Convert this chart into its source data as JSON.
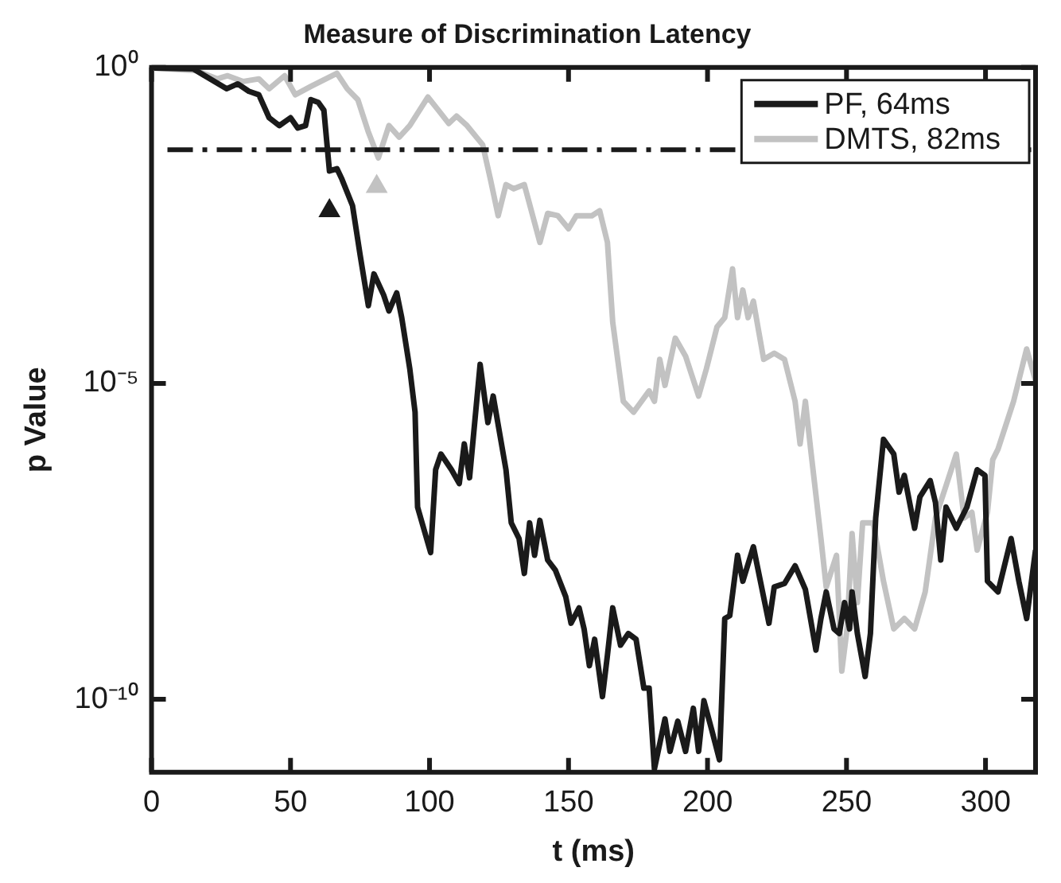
{
  "chart_data": {
    "type": "line",
    "title": "Measure of Discrimination Latency",
    "xlabel": "t (ms)",
    "ylabel": "p Value",
    "log": "y",
    "grid": false,
    "legend": "top right",
    "xlim": [
      0,
      318
    ],
    "xticks": [
      0,
      50,
      100,
      150,
      200,
      250,
      300
    ],
    "ylim": [
      7e-12,
      1
    ],
    "yticks": [
      {
        "value": 1,
        "label": "10⁰"
      },
      {
        "value": 1e-05,
        "label": "10⁻⁵"
      },
      {
        "value": 1e-10,
        "label": "10⁻¹⁰"
      }
    ],
    "ref_lines": [
      {
        "axis": "y",
        "value": 0.05,
        "color": "#1a1a1a",
        "line_style": "dashed"
      }
    ],
    "series": [
      {
        "name": "PF, 64ms",
        "type": "line",
        "color": "#1a1a1a",
        "x": [
          1,
          15,
          27,
          31,
          35,
          38.6,
          42.3,
          46,
          50,
          52.6,
          55.4,
          57.3,
          60,
          62,
          64,
          66.7,
          68.5,
          72.3,
          75,
          78,
          80,
          83.5,
          85.4,
          88.2,
          90,
          92.9,
          94.8,
          95.7,
          100.4,
          102.2,
          104.1,
          107.9,
          110.7,
          112.5,
          114.4,
          118.2,
          121,
          122.9,
          127.5,
          129.4,
          132.2,
          134.1,
          136,
          137.8,
          139.7,
          142.5,
          145.3,
          149,
          150.9,
          153.8,
          155.6,
          157.5,
          159.4,
          162.2,
          164,
          165.9,
          168.7,
          171.5,
          174.3,
          177.1,
          179,
          180.9,
          184.7,
          186.5,
          189.3,
          192.1,
          194.9,
          196.8,
          198.7,
          201.5,
          204.3,
          206.2,
          208,
          210.8,
          212.7,
          216.5,
          222.1,
          224,
          227.7,
          231.5,
          235.2,
          239,
          240.8,
          242.7,
          245.5,
          247.4,
          249.3,
          251.1,
          252,
          253.9,
          256.7,
          258.6,
          260.5,
          263.3,
          267,
          268.9,
          270.8,
          274.5,
          276.4,
          280.1,
          282,
          283.9,
          285.8,
          289.5,
          293.3,
          297,
          299.8,
          300.7,
          304.5,
          309.2,
          312,
          314.8,
          318
        ],
        "values": [
          0.98,
          0.95,
          0.46,
          0.55,
          0.42,
          0.37,
          0.16,
          0.12,
          0.16,
          0.11,
          0.12,
          0.31,
          0.28,
          0.21,
          0.023,
          0.025,
          0.017,
          0.0065,
          0.0011,
          0.00017,
          0.00054,
          0.00025,
          0.00014,
          0.00027,
          0.00011,
          1.7e-05,
          3.5e-06,
          1.1e-07,
          2.1e-08,
          4.3e-07,
          7.6e-07,
          4.3e-07,
          2.6e-07,
          1.1e-06,
          3.2e-07,
          2e-05,
          2.4e-06,
          6.3e-06,
          4.3e-07,
          6.2e-08,
          3.5e-08,
          9.8e-09,
          6.2e-08,
          1.9e-08,
          6.8e-08,
          1.6e-08,
          1.1e-08,
          4.2e-09,
          1.6e-09,
          2.8e-09,
          1.3e-09,
          3.4e-10,
          8.9e-10,
          1.1e-10,
          5e-10,
          2.8e-09,
          7.2e-10,
          1.1e-09,
          8.9e-10,
          1.5e-10,
          1.5e-10,
          7.9e-12,
          4.9e-11,
          1.5e-11,
          4.5e-11,
          1.5e-11,
          7.2e-11,
          1.5e-11,
          9.5e-11,
          3.3e-11,
          1.1e-11,
          1.9e-09,
          2.1e-09,
          1.9e-08,
          7.4e-09,
          2.6e-08,
          1.6e-09,
          6e-09,
          6.8e-09,
          1.3e-08,
          5.5e-09,
          6e-10,
          1.9e-09,
          5e-09,
          1.3e-09,
          1.1e-09,
          3.4e-09,
          1.3e-09,
          5e-09,
          1.1e-09,
          2.3e-10,
          1.1e-09,
          7.4e-08,
          1.3e-06,
          7.6e-07,
          1.9e-07,
          3.5e-07,
          5.1e-08,
          1.6e-07,
          2.9e-07,
          1.3e-07,
          1.6e-08,
          1.1e-07,
          5.1e-08,
          1.1e-07,
          4.3e-07,
          3.5e-07,
          7.4e-09,
          5e-09,
          3.5e-08,
          7.4e-09,
          1.9e-09,
          2.3e-08
        ]
      },
      {
        "name": "DMTS, 82ms",
        "type": "line",
        "color": "#c2c2c2",
        "x": [
          1,
          16,
          23.6,
          27.4,
          33,
          38.6,
          42.3,
          47.9,
          51.7,
          57.3,
          66.7,
          70.4,
          74.2,
          77.9,
          81.6,
          85.4,
          89.1,
          92.9,
          99.4,
          103.2,
          106.9,
          109.7,
          113.5,
          119.1,
          121.9,
          124.7,
          127.5,
          130.3,
          134.1,
          139.7,
          142.5,
          146.2,
          150,
          152.8,
          158.4,
          161.2,
          164,
          165.9,
          169.7,
          173.4,
          179,
          180.9,
          182.8,
          184.7,
          188.4,
          192.1,
          196.8,
          199.6,
          203.4,
          206.2,
          209,
          210.8,
          212.7,
          214.6,
          216.5,
          220.2,
          224,
          227.7,
          231.5,
          233.3,
          235.2,
          237.1,
          240.8,
          242.7,
          246.4,
          248.3,
          250.2,
          252,
          253.9,
          255.8,
          259.6,
          263.3,
          267,
          270.8,
          274.5,
          278.3,
          282,
          285.8,
          289.5,
          292.3,
          295.1,
          297,
          300.7,
          302.6,
          304.5,
          310.1,
          314.8,
          318
        ],
        "values": [
          0.98,
          0.89,
          0.66,
          0.74,
          0.6,
          0.66,
          0.46,
          0.74,
          0.37,
          0.5,
          0.81,
          0.46,
          0.31,
          0.098,
          0.037,
          0.12,
          0.079,
          0.12,
          0.34,
          0.21,
          0.13,
          0.17,
          0.12,
          0.06,
          0.017,
          0.0045,
          0.014,
          0.012,
          0.014,
          0.0017,
          0.0049,
          0.0045,
          0.0028,
          0.0045,
          0.0045,
          0.0054,
          0.0017,
          9.3e-05,
          5.2e-06,
          3.5e-06,
          7.6e-06,
          5.2e-06,
          2.4e-05,
          9.3e-06,
          5.2e-05,
          2.7e-05,
          6.3e-06,
          1.7e-05,
          7.8e-05,
          0.00011,
          0.00065,
          0.00011,
          0.0003,
          0.00011,
          0.0002,
          2.4e-05,
          3e-05,
          2.4e-05,
          5.2e-06,
          1.1e-06,
          5.2e-06,
          9.1e-07,
          3.5e-08,
          6e-09,
          1.9e-08,
          2.8e-10,
          1.3e-09,
          4.2e-08,
          3.4e-09,
          6.2e-08,
          6.2e-08,
          7.4e-09,
          1.3e-09,
          1.9e-09,
          1.3e-09,
          5e-09,
          7.4e-08,
          2.4e-07,
          7.6e-07,
          7.4e-08,
          9.1e-08,
          2.3e-08,
          9.1e-08,
          6.2e-07,
          9.1e-07,
          5.2e-06,
          3.5e-05,
          1.1e-05
        ]
      },
      {
        "type": "scatter",
        "marker": "triangle",
        "color": "#1a1a1a",
        "x": [
          64
        ],
        "values": [
          0.0054
        ]
      },
      {
        "type": "scatter",
        "marker": "triangle",
        "color": "#c2c2c2",
        "x": [
          81
        ],
        "values": [
          0.013
        ]
      }
    ]
  }
}
